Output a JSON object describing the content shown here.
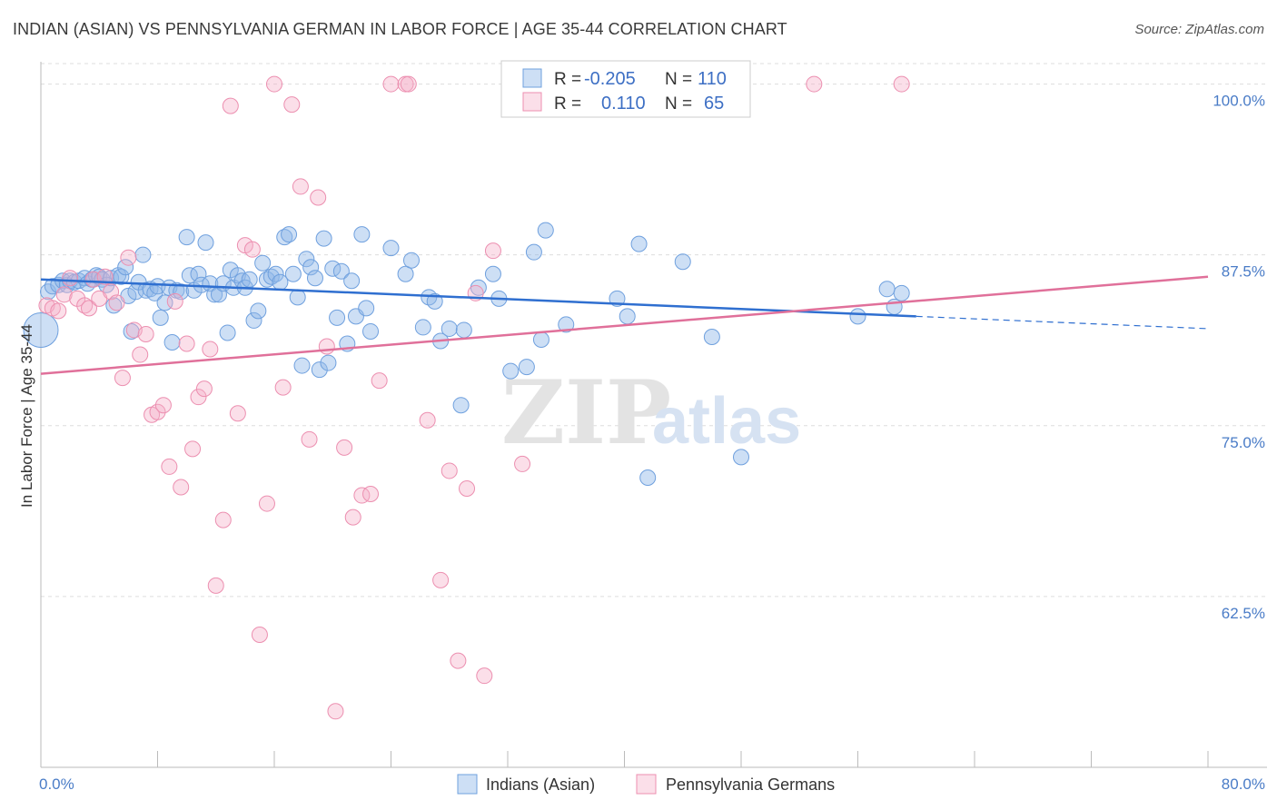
{
  "title": "INDIAN (ASIAN) VS PENNSYLVANIA GERMAN IN LABOR FORCE | AGE 35-44 CORRELATION CHART",
  "source": "Source: ZipAtlas.com",
  "watermark": {
    "zip": "ZIP",
    "atlas": "atlas"
  },
  "colors": {
    "blue": "#6fa0de",
    "blue_fill": "rgba(145,183,232,0.45)",
    "blue_line": "#2f6fd0",
    "pink": "#ec8fb0",
    "pink_fill": "rgba(245,175,200,0.40)",
    "pink_line": "#e0709a",
    "tick": "#4a7cc7",
    "grid": "#dddddd"
  },
  "legend": {
    "rows": [
      {
        "r_label": "R =",
        "r_value": "-0.205",
        "n_label": "N =",
        "n_value": "110"
      },
      {
        "r_label": "R =",
        "r_value": "0.110",
        "n_label": "N =",
        "n_value": "65"
      }
    ]
  },
  "chart_data": {
    "type": "scatter",
    "xlabel": "",
    "ylabel": "In Labor Force | Age 35-44",
    "xlim": [
      0,
      80
    ],
    "ylim": [
      50,
      101.5
    ],
    "x_tick_labels": [
      "0.0%",
      "80.0%"
    ],
    "y_ticks": [
      100,
      87.5,
      75,
      62.5
    ],
    "y_tick_labels": [
      "100.0%",
      "87.5%",
      "75.0%",
      "62.5%"
    ],
    "grid": true,
    "legend_position": "top-center",
    "series": [
      {
        "name": "Indians (Asian)",
        "trend": {
          "x0": 0,
          "y0": 85.7,
          "x1": 60,
          "y1": 83.0,
          "dash_to_x": 80,
          "dash_to_y": 82.1
        },
        "points": [
          [
            0.0,
            82.0
          ],
          [
            0.5,
            84.8
          ],
          [
            0.8,
            85.2
          ],
          [
            1.2,
            85.3
          ],
          [
            1.5,
            85.6
          ],
          [
            1.8,
            85.3
          ],
          [
            2.0,
            85.6
          ],
          [
            2.3,
            85.5
          ],
          [
            2.6,
            85.6
          ],
          [
            3.0,
            85.8
          ],
          [
            3.2,
            85.4
          ],
          [
            3.5,
            85.7
          ],
          [
            3.8,
            86.0
          ],
          [
            4.0,
            85.9
          ],
          [
            4.2,
            85.7
          ],
          [
            4.5,
            85.3
          ],
          [
            4.8,
            85.8
          ],
          [
            5.0,
            83.8
          ],
          [
            5.3,
            86.0
          ],
          [
            5.5,
            85.9
          ],
          [
            5.8,
            86.6
          ],
          [
            6.0,
            84.5
          ],
          [
            6.2,
            81.9
          ],
          [
            6.5,
            84.8
          ],
          [
            6.7,
            85.5
          ],
          [
            7.0,
            87.5
          ],
          [
            7.2,
            84.9
          ],
          [
            7.5,
            85.0
          ],
          [
            7.8,
            84.7
          ],
          [
            8.0,
            85.2
          ],
          [
            8.2,
            82.9
          ],
          [
            8.5,
            84.0
          ],
          [
            8.8,
            85.1
          ],
          [
            9.0,
            81.1
          ],
          [
            9.3,
            84.9
          ],
          [
            9.6,
            84.8
          ],
          [
            10.0,
            88.8
          ],
          [
            10.2,
            86.0
          ],
          [
            10.5,
            84.9
          ],
          [
            10.8,
            86.1
          ],
          [
            11.0,
            85.3
          ],
          [
            11.3,
            88.4
          ],
          [
            11.6,
            85.4
          ],
          [
            11.9,
            84.6
          ],
          [
            12.2,
            84.6
          ],
          [
            12.5,
            85.4
          ],
          [
            12.8,
            81.8
          ],
          [
            13.0,
            86.4
          ],
          [
            13.2,
            85.1
          ],
          [
            13.5,
            86.0
          ],
          [
            13.8,
            85.6
          ],
          [
            14.0,
            85.1
          ],
          [
            14.3,
            85.7
          ],
          [
            14.6,
            82.7
          ],
          [
            14.9,
            83.4
          ],
          [
            15.2,
            86.9
          ],
          [
            15.5,
            85.7
          ],
          [
            15.8,
            85.9
          ],
          [
            16.1,
            86.1
          ],
          [
            16.4,
            85.5
          ],
          [
            16.7,
            88.8
          ],
          [
            17.0,
            89.0
          ],
          [
            17.3,
            86.1
          ],
          [
            17.6,
            84.4
          ],
          [
            17.9,
            79.4
          ],
          [
            18.2,
            87.2
          ],
          [
            18.5,
            86.6
          ],
          [
            18.8,
            85.8
          ],
          [
            19.1,
            79.1
          ],
          [
            19.4,
            88.7
          ],
          [
            19.7,
            79.6
          ],
          [
            20.0,
            86.5
          ],
          [
            20.3,
            82.9
          ],
          [
            20.6,
            86.3
          ],
          [
            21.0,
            81.0
          ],
          [
            21.3,
            85.6
          ],
          [
            21.6,
            83.0
          ],
          [
            22.0,
            89.0
          ],
          [
            22.3,
            83.6
          ],
          [
            22.6,
            81.9
          ],
          [
            24.0,
            88.0
          ],
          [
            25.0,
            86.1
          ],
          [
            25.4,
            87.1
          ],
          [
            26.2,
            82.2
          ],
          [
            26.6,
            84.4
          ],
          [
            27.0,
            84.1
          ],
          [
            27.4,
            81.2
          ],
          [
            28.0,
            82.1
          ],
          [
            28.8,
            76.5
          ],
          [
            30.0,
            85.1
          ],
          [
            31.0,
            86.1
          ],
          [
            31.4,
            84.3
          ],
          [
            32.2,
            79.0
          ],
          [
            33.3,
            79.3
          ],
          [
            33.8,
            87.7
          ],
          [
            34.3,
            81.3
          ],
          [
            34.6,
            89.3
          ],
          [
            36.0,
            82.4
          ],
          [
            39.5,
            84.3
          ],
          [
            40.2,
            83.0
          ],
          [
            41.0,
            88.3
          ],
          [
            41.6,
            71.2
          ],
          [
            48.0,
            72.7
          ],
          [
            56.0,
            83.0
          ],
          [
            58.5,
            83.7
          ],
          [
            58.0,
            85.0
          ],
          [
            59.0,
            84.7
          ],
          [
            29.0,
            82.0
          ],
          [
            46.0,
            81.5
          ],
          [
            44.0,
            87.0
          ]
        ]
      },
      {
        "name": "Pennsylvania Germans",
        "trend": {
          "x0": 0,
          "y0": 78.8,
          "x1": 80,
          "y1": 85.9
        },
        "points": [
          [
            0.4,
            83.8
          ],
          [
            0.8,
            83.6
          ],
          [
            1.2,
            83.4
          ],
          [
            1.6,
            84.6
          ],
          [
            2.0,
            85.8
          ],
          [
            2.5,
            84.3
          ],
          [
            3.0,
            83.8
          ],
          [
            3.3,
            83.6
          ],
          [
            3.6,
            85.7
          ],
          [
            4.0,
            84.3
          ],
          [
            4.4,
            85.9
          ],
          [
            4.8,
            84.8
          ],
          [
            5.2,
            84.0
          ],
          [
            5.6,
            78.5
          ],
          [
            6.0,
            87.3
          ],
          [
            6.4,
            82.0
          ],
          [
            6.8,
            80.2
          ],
          [
            7.2,
            81.7
          ],
          [
            7.6,
            75.8
          ],
          [
            8.0,
            76.0
          ],
          [
            8.4,
            76.5
          ],
          [
            8.8,
            72.0
          ],
          [
            9.2,
            84.1
          ],
          [
            9.6,
            70.5
          ],
          [
            10.0,
            81.0
          ],
          [
            10.4,
            73.3
          ],
          [
            10.8,
            77.1
          ],
          [
            11.2,
            77.7
          ],
          [
            11.6,
            80.6
          ],
          [
            12.0,
            63.3
          ],
          [
            12.5,
            68.1
          ],
          [
            13.0,
            98.4
          ],
          [
            13.5,
            75.9
          ],
          [
            14.0,
            88.2
          ],
          [
            14.5,
            87.9
          ],
          [
            15.0,
            59.7
          ],
          [
            15.5,
            69.3
          ],
          [
            16.0,
            100.0
          ],
          [
            16.6,
            77.8
          ],
          [
            17.2,
            98.5
          ],
          [
            17.8,
            92.5
          ],
          [
            18.4,
            74.0
          ],
          [
            19.0,
            91.7
          ],
          [
            19.6,
            80.8
          ],
          [
            20.2,
            54.1
          ],
          [
            20.8,
            73.4
          ],
          [
            21.4,
            68.3
          ],
          [
            22.0,
            69.9
          ],
          [
            22.6,
            70.0
          ],
          [
            23.2,
            78.3
          ],
          [
            24.0,
            100.0
          ],
          [
            25.0,
            100.0
          ],
          [
            25.2,
            100.0
          ],
          [
            26.5,
            75.4
          ],
          [
            27.4,
            63.7
          ],
          [
            28.0,
            71.7
          ],
          [
            28.6,
            57.8
          ],
          [
            29.2,
            70.4
          ],
          [
            29.8,
            84.7
          ],
          [
            30.4,
            56.7
          ],
          [
            31.0,
            87.8
          ],
          [
            33.0,
            72.2
          ],
          [
            37.0,
            100.0
          ],
          [
            53.0,
            100.0
          ],
          [
            59.0,
            100.0
          ]
        ]
      }
    ]
  }
}
